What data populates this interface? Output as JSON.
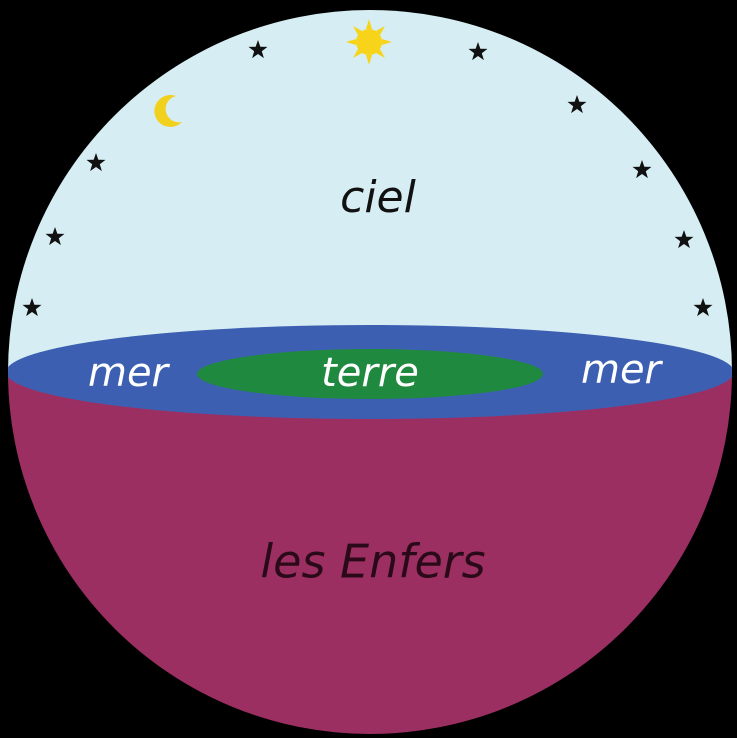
{
  "regions": {
    "sky": "ciel",
    "sea_left": "mer",
    "land": "terre",
    "sea_right": "mer",
    "underworld": "les Enfers"
  }
}
